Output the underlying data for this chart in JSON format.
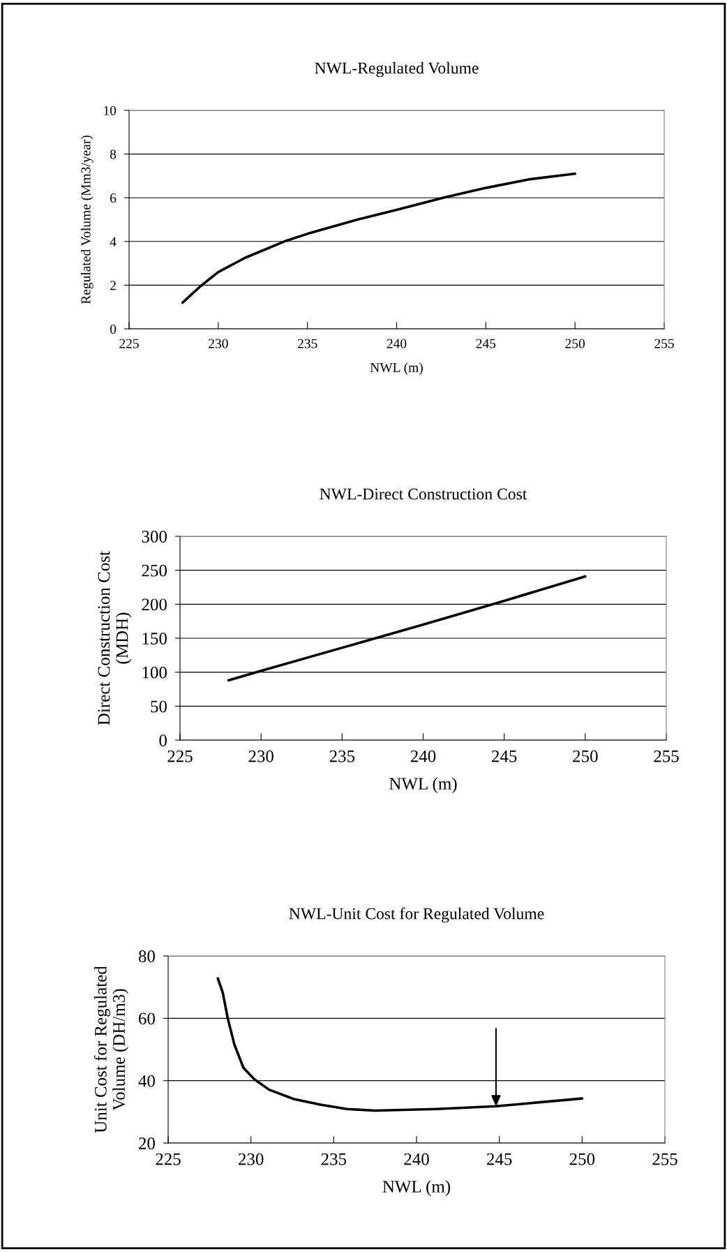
{
  "chart_data": [
    {
      "type": "line",
      "title": "NWL-Regulated Volume",
      "xlabel": "NWL (m)",
      "ylabel": "Regulated Volume (Mm3/year)",
      "x": [
        228,
        229,
        230,
        231.5,
        233.7,
        235,
        237.8,
        240,
        242.6,
        245,
        247.5,
        250
      ],
      "series": [
        {
          "color": "#000000",
          "values": [
            1.2,
            1.95,
            2.6,
            3.25,
            4.0,
            4.35,
            5.0,
            5.45,
            6.0,
            6.45,
            6.85,
            7.1
          ]
        }
      ],
      "xlim": [
        225,
        255
      ],
      "xticks": [
        225,
        230,
        235,
        240,
        245,
        250,
        255
      ],
      "ylim": [
        0,
        10
      ],
      "yticks": [
        0,
        2,
        4,
        6,
        8,
        10
      ],
      "grid": "y",
      "legend": false,
      "marker": "none",
      "line_style": "solid"
    },
    {
      "type": "line",
      "title": "NWL-Direct Construction Cost",
      "xlabel": "NWL (m)",
      "ylabel": "Direct Construction Cost\n(MDH)",
      "x": [
        228,
        230,
        235,
        240,
        245,
        250
      ],
      "series": [
        {
          "color": "#000000",
          "values": [
            88,
            102,
            136,
            170,
            205,
            241
          ]
        }
      ],
      "xlim": [
        225,
        255
      ],
      "xticks": [
        225,
        230,
        235,
        240,
        245,
        250,
        255
      ],
      "ylim": [
        0,
        300
      ],
      "yticks": [
        0,
        50,
        100,
        150,
        200,
        250,
        300
      ],
      "grid": "y",
      "legend": false,
      "marker": "none",
      "line_style": "solid"
    },
    {
      "type": "line",
      "title": "NWL-Unit Cost for Regulated Volume",
      "xlabel": "NWL (m)",
      "ylabel": "Unit Cost for Regulated\nVolume (DH/m3)",
      "x": [
        228,
        228.3,
        228.6,
        229.0,
        229.55,
        230.2,
        231.1,
        232.6,
        234.2,
        235.8,
        237.5,
        241.2,
        244.8,
        250
      ],
      "series": [
        {
          "color": "#000000",
          "values": [
            72.8,
            68.2,
            60,
            51.6,
            44.1,
            40.5,
            37.1,
            34.1,
            32.3,
            30.9,
            30.4,
            30.9,
            31.8,
            34.3
          ]
        }
      ],
      "xlim": [
        225,
        255
      ],
      "xticks": [
        225,
        230,
        235,
        240,
        245,
        250,
        255
      ],
      "ylim": [
        20,
        80
      ],
      "yticks": [
        20,
        40,
        60,
        80
      ],
      "grid": "y",
      "legend": false,
      "marker": "none",
      "line_style": "solid"
    }
  ]
}
